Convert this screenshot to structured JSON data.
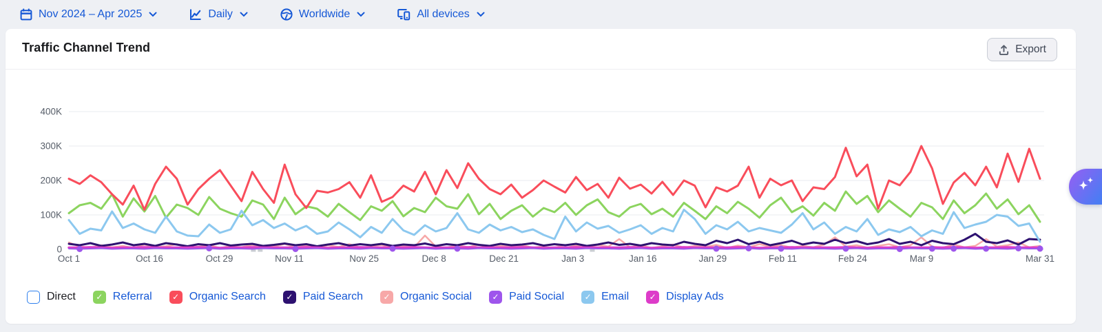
{
  "toolbar": {
    "date_range": {
      "label": "Nov 2024 – Apr 2025",
      "icon": "calendar-icon"
    },
    "granularity": {
      "label": "Daily",
      "icon": "line-chart-icon"
    },
    "region": {
      "label": "Worldwide",
      "icon": "globe-icon"
    },
    "devices": {
      "label": "All devices",
      "icon": "devices-icon"
    }
  },
  "card": {
    "title": "Traffic Channel Trend",
    "export_label": "Export"
  },
  "colors": {
    "accent_blue": "#1558d6",
    "page_bg": "#eef0f4",
    "grid": "#e9ebef",
    "axis_text": "#565d68",
    "annotation_gray": "#c9ccd3",
    "ai_gradient_start": "#8e62f3",
    "ai_gradient_end": "#4b7cf3"
  },
  "legend": [
    {
      "label": "Direct",
      "checked": false,
      "color": "#ffffff",
      "border": "#2f80ed",
      "label_color": "#1b1b1f"
    },
    {
      "label": "Referral",
      "checked": true,
      "color": "#8cd45f",
      "label_color": "#1558d6"
    },
    {
      "label": "Organic Search",
      "checked": true,
      "color": "#f94d5b",
      "label_color": "#1558d6"
    },
    {
      "label": "Paid Search",
      "checked": true,
      "color": "#2d1170",
      "label_color": "#1558d6"
    },
    {
      "label": "Organic Social",
      "checked": true,
      "color": "#f7a8a8",
      "label_color": "#1558d6"
    },
    {
      "label": "Paid Social",
      "checked": true,
      "color": "#9e55ec",
      "label_color": "#1558d6"
    },
    {
      "label": "Email",
      "checked": true,
      "color": "#8cc8ef",
      "label_color": "#1558d6"
    },
    {
      "label": "Display Ads",
      "checked": true,
      "color": "#dd3cc9",
      "label_color": "#1558d6"
    }
  ],
  "chart_data": {
    "type": "line",
    "title": "Traffic Channel Trend",
    "unit": "visits (K)",
    "grid": true,
    "legend_position": "bottom",
    "ylim": [
      0,
      400
    ],
    "yticks": [
      {
        "label": "400K",
        "value": 400
      },
      {
        "label": "300K",
        "value": 300
      },
      {
        "label": "200K",
        "value": 200
      },
      {
        "label": "100K",
        "value": 100
      },
      {
        "label": "0",
        "value": 0
      }
    ],
    "xticks": [
      {
        "label": "Oct 1",
        "pos": 0.0
      },
      {
        "label": "Oct 16",
        "pos": 0.083
      },
      {
        "label": "Oct 29",
        "pos": 0.155
      },
      {
        "label": "Nov 11",
        "pos": 0.227
      },
      {
        "label": "Nov 25",
        "pos": 0.304
      },
      {
        "label": "Dec 8",
        "pos": 0.376
      },
      {
        "label": "Dec 21",
        "pos": 0.448
      },
      {
        "label": "Jan 3",
        "pos": 0.519
      },
      {
        "label": "Jan 16",
        "pos": 0.591
      },
      {
        "label": "Jan 29",
        "pos": 0.663
      },
      {
        "label": "Feb 11",
        "pos": 0.735
      },
      {
        "label": "Feb 24",
        "pos": 0.807
      },
      {
        "label": "Mar 9",
        "pos": 0.878
      },
      {
        "label": "Mar 31",
        "pos": 1.0
      }
    ],
    "x_period": "daily, Oct 1 – Mar 31 (values sampled every 2 days, in thousands)",
    "annotations": [
      0.19,
      0.197,
      0.539
    ],
    "draw_order": [
      "organic_social",
      "paid_search",
      "referral",
      "email",
      "organic_search",
      "display_ads",
      "paid_social"
    ],
    "series": [
      {
        "key": "referral",
        "name": "Referral",
        "color": "#8cd45f",
        "width": 3,
        "values": [
          105,
          128,
          135,
          118,
          160,
          95,
          148,
          110,
          155,
          92,
          130,
          120,
          100,
          152,
          118,
          105,
          95,
          142,
          130,
          88,
          150,
          102,
          125,
          118,
          95,
          132,
          108,
          85,
          125,
          112,
          140,
          96,
          120,
          108,
          150,
          125,
          118,
          160,
          102,
          132,
          88,
          112,
          128,
          95,
          120,
          108,
          135,
          100,
          128,
          145,
          108,
          95,
          122,
          132,
          102,
          118,
          95,
          135,
          112,
          88,
          125,
          105,
          138,
          118,
          92,
          128,
          150,
          108,
          125,
          98,
          135,
          112,
          168,
          132,
          155,
          108,
          142,
          118,
          95,
          135,
          122,
          88,
          142,
          105,
          128,
          162,
          118,
          145,
          102,
          128,
          80
        ]
      },
      {
        "key": "organic_search",
        "name": "Organic Search",
        "color": "#f94d5b",
        "width": 3,
        "values": [
          205,
          190,
          215,
          195,
          160,
          130,
          185,
          115,
          190,
          240,
          205,
          130,
          175,
          205,
          230,
          185,
          140,
          225,
          175,
          135,
          246,
          160,
          120,
          170,
          165,
          175,
          195,
          150,
          215,
          138,
          152,
          185,
          168,
          225,
          160,
          230,
          178,
          250,
          205,
          175,
          160,
          188,
          150,
          172,
          200,
          182,
          165,
          210,
          172,
          190,
          150,
          208,
          176,
          188,
          162,
          196,
          158,
          200,
          185,
          122,
          180,
          168,
          185,
          240,
          150,
          205,
          186,
          200,
          140,
          180,
          175,
          210,
          295,
          212,
          246,
          118,
          200,
          186,
          225,
          300,
          235,
          132,
          194,
          222,
          186,
          240,
          180,
          278,
          196,
          292,
          205
        ]
      },
      {
        "key": "paid_search",
        "name": "Paid Search",
        "color": "#2d1170",
        "width": 3,
        "values": [
          16,
          12,
          18,
          10,
          14,
          20,
          12,
          16,
          10,
          18,
          14,
          9,
          15,
          12,
          18,
          11,
          14,
          16,
          10,
          13,
          17,
          12,
          15,
          9,
          14,
          18,
          11,
          15,
          12,
          16,
          10,
          14,
          12,
          17,
          10,
          15,
          12,
          18,
          13,
          10,
          16,
          12,
          14,
          18,
          11,
          15,
          12,
          16,
          10,
          14,
          20,
          13,
          16,
          11,
          18,
          14,
          12,
          22,
          16,
          12,
          25,
          18,
          28,
          15,
          22,
          12,
          18,
          25,
          14,
          20,
          16,
          28,
          18,
          24,
          15,
          20,
          30,
          16,
          22,
          12,
          25,
          18,
          15,
          28,
          45,
          22,
          18,
          26,
          14,
          30,
          28
        ]
      },
      {
        "key": "organic_social",
        "name": "Organic Social",
        "color": "#f7a8a8",
        "width": 2.5,
        "values": [
          20,
          8,
          5,
          12,
          6,
          10,
          4,
          14,
          6,
          9,
          15,
          5,
          8,
          12,
          4,
          10,
          6,
          13,
          5,
          8,
          16,
          6,
          10,
          4,
          12,
          7,
          15,
          5,
          9,
          13,
          4,
          10,
          6,
          40,
          8,
          5,
          12,
          6,
          14,
          4,
          10,
          7,
          12,
          5,
          9,
          15,
          4,
          11,
          6,
          13,
          8,
          30,
          6,
          12,
          4,
          9,
          14,
          5,
          10,
          7,
          13,
          4,
          11,
          6,
          15,
          8,
          12,
          5,
          10,
          6,
          14,
          35,
          8,
          12,
          5,
          10,
          15,
          6,
          12,
          35,
          8,
          5,
          14,
          6,
          10,
          30,
          8,
          12,
          20,
          6,
          10
        ]
      },
      {
        "key": "paid_social",
        "name": "Paid Social",
        "color": "#9e55ec",
        "width": 2,
        "marker_indices": [
          1,
          13,
          21,
          30,
          36,
          60,
          63,
          66,
          72,
          77,
          80,
          82,
          85,
          88,
          90
        ],
        "values": [
          2,
          1,
          2,
          3,
          1,
          2,
          2,
          1,
          3,
          2,
          2,
          1,
          2,
          3,
          1,
          2,
          2,
          1,
          3,
          2,
          2,
          1,
          2,
          3,
          1,
          2,
          2,
          1,
          3,
          2,
          2,
          1,
          2,
          3,
          1,
          2,
          2,
          1,
          3,
          2,
          2,
          1,
          2,
          3,
          1,
          2,
          2,
          1,
          3,
          2,
          2,
          1,
          2,
          3,
          1,
          2,
          2,
          1,
          3,
          2,
          2,
          1,
          2,
          3,
          1,
          2,
          2,
          1,
          3,
          2,
          2,
          1,
          2,
          3,
          1,
          2,
          2,
          1,
          3,
          2,
          2,
          1,
          2,
          3,
          1,
          2,
          2,
          1,
          3,
          2,
          2
        ]
      },
      {
        "key": "email",
        "name": "Email",
        "color": "#8cc8ef",
        "width": 3,
        "values": [
          85,
          45,
          60,
          55,
          110,
          62,
          75,
          58,
          48,
          95,
          52,
          40,
          38,
          72,
          48,
          58,
          112,
          70,
          85,
          62,
          75,
          55,
          68,
          45,
          52,
          78,
          58,
          35,
          65,
          48,
          88,
          55,
          42,
          70,
          52,
          62,
          105,
          58,
          48,
          72,
          55,
          65,
          50,
          58,
          42,
          30,
          95,
          52,
          78,
          60,
          68,
          48,
          58,
          70,
          45,
          62,
          52,
          115,
          88,
          45,
          70,
          58,
          80,
          52,
          62,
          55,
          48,
          72,
          105,
          58,
          78,
          45,
          65,
          52,
          88,
          42,
          58,
          50,
          65,
          38,
          55,
          45,
          108,
          62,
          72,
          80,
          100,
          95,
          68,
          75,
          22
        ]
      },
      {
        "key": "display_ads",
        "name": "Display Ads",
        "color": "#dd3cc9",
        "width": 3.5,
        "values": [
          5,
          5,
          6,
          5,
          4,
          5,
          5,
          6,
          5,
          5,
          5,
          5,
          6,
          5,
          4,
          5,
          5,
          6,
          5,
          5,
          5,
          5,
          6,
          5,
          4,
          5,
          5,
          6,
          5,
          5,
          5,
          5,
          6,
          5,
          4,
          5,
          5,
          6,
          5,
          5,
          5,
          5,
          6,
          5,
          4,
          5,
          5,
          6,
          5,
          5,
          5,
          5,
          6,
          5,
          4,
          5,
          5,
          6,
          5,
          5,
          5,
          5,
          6,
          5,
          4,
          5,
          5,
          6,
          5,
          5,
          5,
          5,
          6,
          5,
          4,
          5,
          5,
          6,
          5,
          5,
          5,
          5,
          6,
          5,
          4,
          5,
          5,
          6,
          5,
          5,
          5
        ]
      }
    ]
  },
  "ai_button": {
    "icon": "sparkles-icon"
  }
}
